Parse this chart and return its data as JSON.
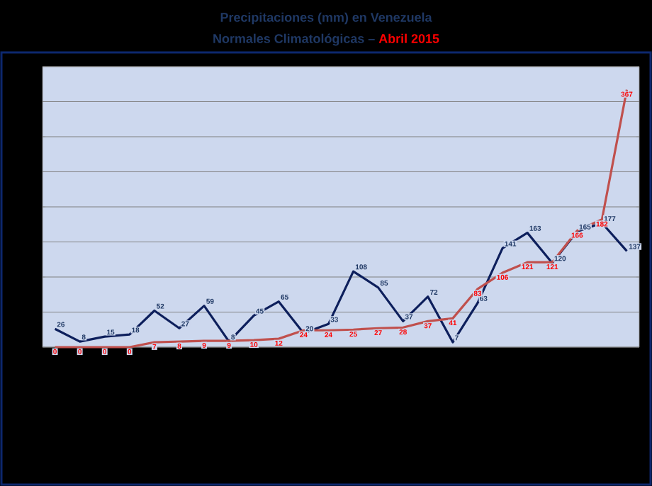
{
  "chart_data": {
    "type": "line",
    "title": "Precipitaciones (mm) en Venezuela",
    "subtitle": "Normales Climatológicas –",
    "annotations": [
      "Abril 2015"
    ],
    "categories": [
      null,
      null,
      null,
      null,
      null,
      null,
      null,
      null,
      null,
      null,
      null,
      null,
      null,
      null,
      null,
      null,
      null,
      null,
      null,
      null,
      null,
      null,
      null,
      null
    ],
    "series": [
      {
        "color": "#0d1f5c",
        "values": [
          26,
          8,
          15,
          18,
          52,
          27,
          59,
          8,
          45,
          65,
          20,
          33,
          108,
          85,
          37,
          72,
          7,
          63,
          141,
          163,
          120,
          165,
          177,
          137
        ]
      },
      {
        "color": "#c0504d",
        "values": [
          0,
          0,
          0,
          0,
          7,
          8,
          9,
          9,
          10,
          12,
          24,
          24,
          25,
          27,
          28,
          37,
          41,
          83,
          106,
          121,
          121,
          166,
          182,
          367
        ]
      }
    ],
    "ylim": [
      0,
      400
    ],
    "yticks": [
      {
        "value": 0,
        "label": null
      },
      {
        "value": 50,
        "label": null
      },
      {
        "value": 100,
        "label": null
      },
      {
        "value": 150,
        "label": null
      },
      {
        "value": 200,
        "label": null
      },
      {
        "value": 250,
        "label": null
      },
      {
        "value": 300,
        "label": null
      },
      {
        "value": 350,
        "label": null
      },
      {
        "value": 400,
        "label": null
      }
    ],
    "tick_labels": false,
    "grid": "y",
    "marker": "none",
    "line_style": "solid",
    "data_labels": true
  }
}
